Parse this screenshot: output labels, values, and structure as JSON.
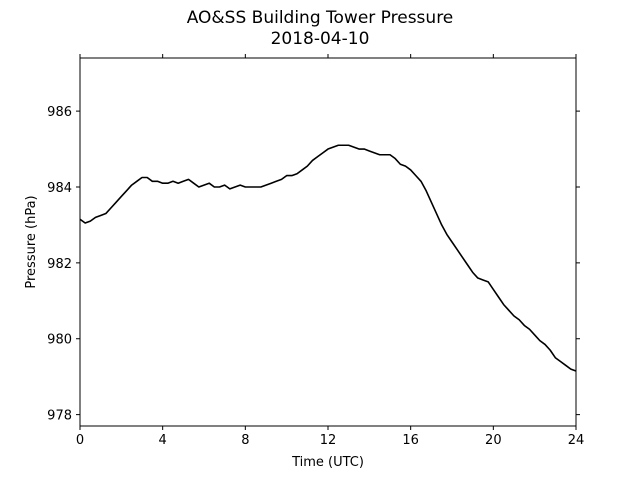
{
  "chart_data": {
    "type": "line",
    "title": "AO&SS Building Tower Pressure",
    "subtitle": "2018-04-10",
    "xlabel": "Time (UTC)",
    "ylabel": "Pressure (hPa)",
    "xlim": [
      0,
      24
    ],
    "ylim": [
      977.7,
      987.4
    ],
    "xticks": [
      0,
      4,
      8,
      12,
      16,
      20,
      24
    ],
    "yticks": [
      978,
      980,
      982,
      984,
      986
    ],
    "grid": false,
    "line_color": "#000000",
    "series": [
      {
        "x": [
          0,
          0.25,
          0.5,
          0.75,
          1,
          1.25,
          1.5,
          1.75,
          2,
          2.25,
          2.5,
          2.75,
          3,
          3.25,
          3.5,
          3.75,
          4,
          4.25,
          4.5,
          4.75,
          5,
          5.25,
          5.5,
          5.75,
          6,
          6.25,
          6.5,
          6.75,
          7,
          7.25,
          7.5,
          7.75,
          8,
          8.25,
          8.5,
          8.75,
          9,
          9.25,
          9.5,
          9.75,
          10,
          10.25,
          10.5,
          10.75,
          11,
          11.25,
          11.5,
          11.75,
          12,
          12.25,
          12.5,
          12.75,
          13,
          13.25,
          13.5,
          13.75,
          14,
          14.25,
          14.5,
          14.75,
          15,
          15.25,
          15.5,
          15.75,
          16,
          16.25,
          16.5,
          16.75,
          17,
          17.25,
          17.5,
          17.75,
          18,
          18.25,
          18.5,
          18.75,
          19,
          19.25,
          19.5,
          19.75,
          20,
          20.25,
          20.5,
          20.75,
          21,
          21.25,
          21.5,
          21.75,
          22,
          22.25,
          22.5,
          22.75,
          23,
          23.25,
          23.5,
          23.75,
          24
        ],
        "values": [
          983.15,
          983.05,
          983.1,
          983.2,
          983.25,
          983.3,
          983.45,
          983.6,
          983.75,
          983.9,
          984.05,
          984.15,
          984.25,
          984.25,
          984.15,
          984.15,
          984.1,
          984.1,
          984.15,
          984.1,
          984.15,
          984.2,
          984.1,
          984.0,
          984.05,
          984.1,
          984.0,
          984.0,
          984.05,
          983.95,
          984.0,
          984.05,
          984.0,
          984.0,
          984.0,
          984.0,
          984.05,
          984.1,
          984.15,
          984.2,
          984.3,
          984.3,
          984.35,
          984.45,
          984.55,
          984.7,
          984.8,
          984.9,
          985.0,
          985.05,
          985.1,
          985.1,
          985.1,
          985.05,
          985.0,
          985.0,
          984.95,
          984.9,
          984.85,
          984.85,
          984.85,
          984.75,
          984.6,
          984.55,
          984.45,
          984.3,
          984.15,
          983.9,
          983.6,
          983.3,
          983.0,
          982.75,
          982.55,
          982.35,
          982.15,
          981.95,
          981.75,
          981.6,
          981.55,
          981.5,
          981.3,
          981.1,
          980.9,
          980.75,
          980.6,
          980.5,
          980.35,
          980.25,
          980.1,
          979.95,
          979.85,
          979.7,
          979.5,
          979.4,
          979.3,
          979.2,
          979.15
        ]
      }
    ]
  }
}
